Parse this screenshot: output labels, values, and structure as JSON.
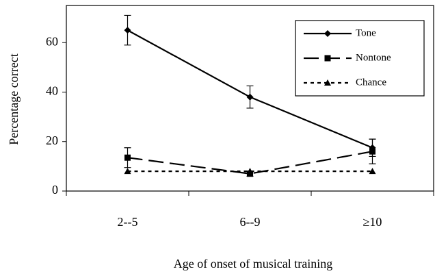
{
  "chart_data": {
    "type": "line",
    "xlabel": "Age of onset of musical training",
    "ylabel": "Percentage correct",
    "categories": [
      "2--5",
      "6--9",
      "≥10"
    ],
    "series": [
      {
        "name": "Tone",
        "color": "#000000",
        "dash": "solid",
        "marker": "diamond",
        "values": [
          65,
          38,
          17.5
        ],
        "errors": [
          6,
          4.5,
          3.5
        ]
      },
      {
        "name": "Nontone",
        "color": "#000000",
        "dash": "long",
        "marker": "square",
        "values": [
          13.5,
          7,
          16
        ],
        "errors": [
          4,
          1,
          5
        ]
      },
      {
        "name": "Chance",
        "color": "#000000",
        "dash": "dotted",
        "marker": "triangle",
        "values": [
          8,
          8,
          8
        ]
      }
    ],
    "ylim": [
      0,
      75
    ],
    "yticks": [
      0,
      20,
      40,
      60
    ],
    "legend": "upper right"
  }
}
